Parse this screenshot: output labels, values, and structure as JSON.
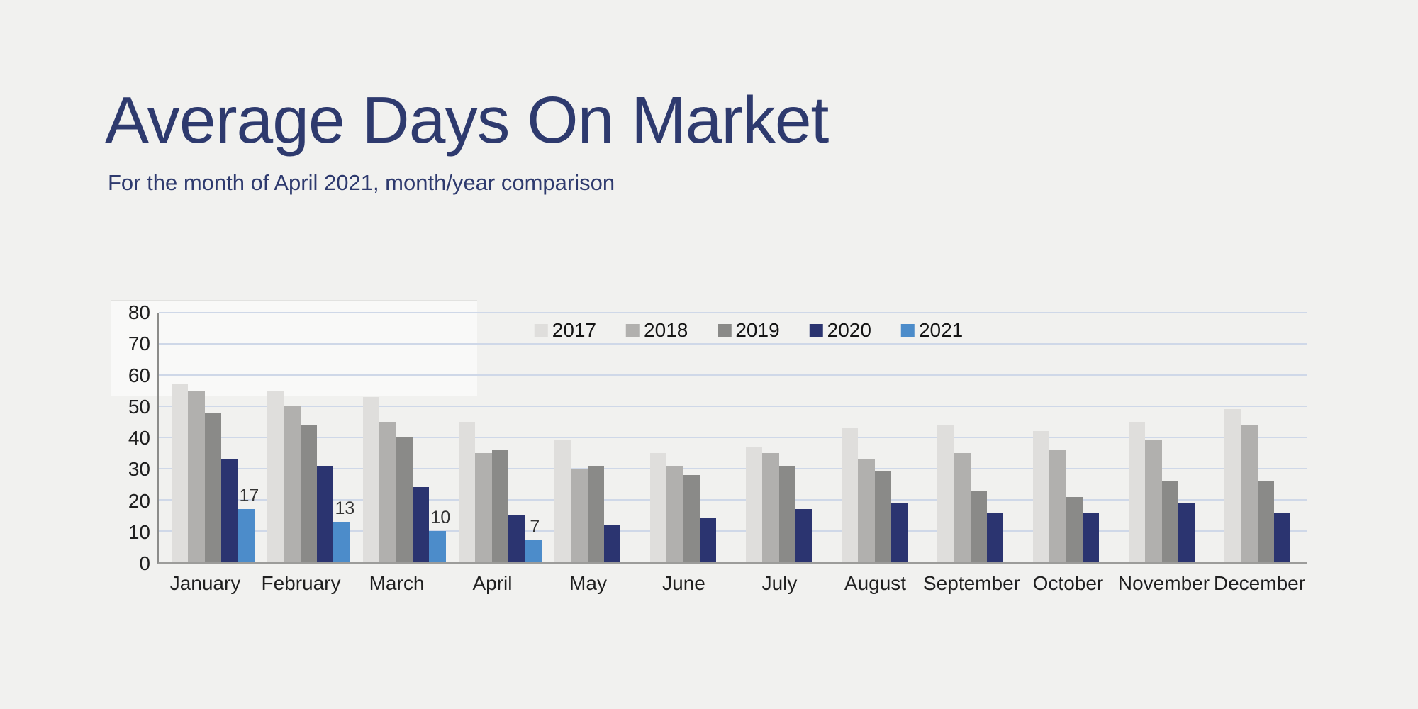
{
  "slide": {
    "title": "Average Days On Market",
    "subtitle": "For the month of April 2021, month/year comparison",
    "background_color": "#f1f1ef",
    "title_color": "#2e3a6e"
  },
  "chart_data": {
    "type": "bar",
    "title": "Average Days On Market",
    "subtitle": "For the month of April 2021, month/year comparison",
    "categories": [
      "January",
      "February",
      "March",
      "April",
      "May",
      "June",
      "July",
      "August",
      "September",
      "October",
      "November",
      "December"
    ],
    "series": [
      {
        "name": "2017",
        "color": "#dfdedc",
        "values": [
          57,
          55,
          53,
          45,
          39,
          35,
          37,
          43,
          44,
          42,
          45,
          49
        ]
      },
      {
        "name": "2018",
        "color": "#b1b0ae",
        "values": [
          55,
          50,
          45,
          35,
          30,
          31,
          35,
          33,
          35,
          36,
          39,
          44
        ]
      },
      {
        "name": "2019",
        "color": "#8a8a88",
        "values": [
          48,
          44,
          40,
          36,
          31,
          28,
          31,
          29,
          23,
          21,
          26,
          26
        ]
      },
      {
        "name": "2020",
        "color": "#2b3470",
        "values": [
          33,
          31,
          24,
          15,
          12,
          14,
          17,
          19,
          16,
          16,
          19,
          16
        ]
      },
      {
        "name": "2021",
        "color": "#4c8cca",
        "values": [
          17,
          13,
          10,
          7,
          null,
          null,
          null,
          null,
          null,
          null,
          null,
          null
        ],
        "show_data_labels": true
      }
    ],
    "xlabel": "",
    "ylabel": "",
    "ylim": [
      0,
      80
    ],
    "ytick_step": 10,
    "grid": "horizontal",
    "gridline_color": "#cfd8e8",
    "axis_color": "#8c8c8a",
    "tick_label_color": "#1f1f1f",
    "legend_position": "top-center",
    "data_label_color": "#333333"
  }
}
